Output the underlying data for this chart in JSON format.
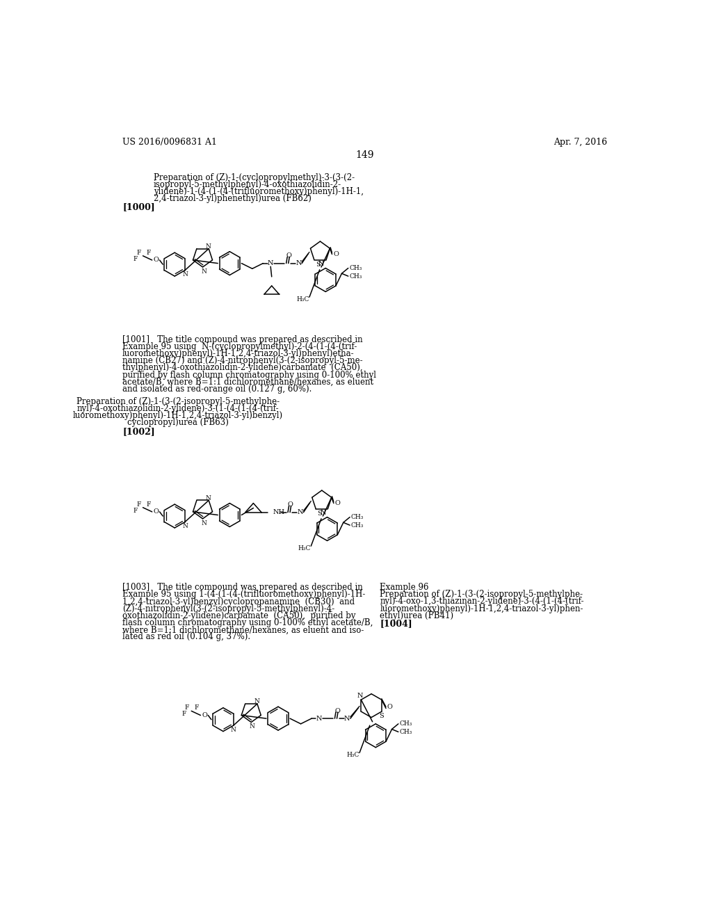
{
  "page_number": "149",
  "header_left": "US 2016/0096831 A1",
  "header_right": "Apr. 7, 2016",
  "background_color": "#ffffff",
  "sec1_title": [
    "Preparation of (Z)-1-(cyclopropylmethyl)-3-(3-(2-",
    "isopropyl-5-methylphenyl)-4-oxothiazolidin-2-",
    "ylidene)-1-(4-(1-(4-(trifluoromethoxy)phenyl)-1H-1,",
    "2,4-triazol-3-yl)phenethyl)urea (FB62)"
  ],
  "sec1_ref": "[1000]",
  "sec1_para": [
    "[1001]   The title compound was prepared as described in",
    "Example 95 using  N-(cyclopropylmethyl)-2-(4-(1-(4-(trif-",
    "luoromethoxy)phenyl)-1H-1,2,4-triazol-3-yl)phenyl)etha-",
    "namine (CB27) and (Z)-4-nitrophenyl(3-(2-isopropyl-5-me-",
    "thylphenyl)-4-oxothiazolidin-2-ylidene)carbamate  (CA50),",
    "purified by flash column chromatography using 0-100% ethyl",
    "acetate/B, where B=1:1 dichloromethane/hexanes, as eluent",
    "and isolated as red-orange oil (0.127 g, 60%)."
  ],
  "sec2_title": [
    "Preparation of (Z)-1-(3-(2-isopropyl-5-methylphe-",
    "nyl)-4-oxothiazolidin-2-ylidene)-3-(1-(4-(1-(4-(trif-",
    "luoromethoxy)phenyl)-1H-1,2,4-triazol-3-yl)benzyl)",
    "cyclopropyl)urea (FB63)"
  ],
  "sec2_ref": "[1002]",
  "sec2_para_left": [
    "[1003]   The title compound was prepared as described in",
    "Example 95 using 1-(4-(1-(4-(trifluoromethoxy)phenyl)-1H-",
    "1,2,4-triazol-3-yl)benzyl)cyclopropanamine  (CB30)  and",
    "(Z)-4-nitrophenyl(3-(2-isopropyl-5-methylphenyl)-4-",
    "oxothiazolidin-2-ylidene)carbamate  (CA50),  purified by",
    "flash column chromatography using 0-100% ethyl acetate/B,",
    "where B=1:1 dichloromethane/hexanes, as eluent and iso-",
    "lated as red oil (0.104 g, 37%)."
  ],
  "sec2_para_right_title": "Example 96",
  "sec2_para_right": [
    "Preparation of (Z)-1-(3-(2-isopropyl-5-methylphe-",
    "nyl)-4-oxo-1,3-thiazinan-2-ylidene)-3-(4-(1-(4-(trif-",
    "luoromethoxy)phenyl)-1H-1,2,4-triazol-3-yl)phen-",
    "ethyl)urea (FB41)"
  ],
  "sec2_ref2": "[1004]"
}
